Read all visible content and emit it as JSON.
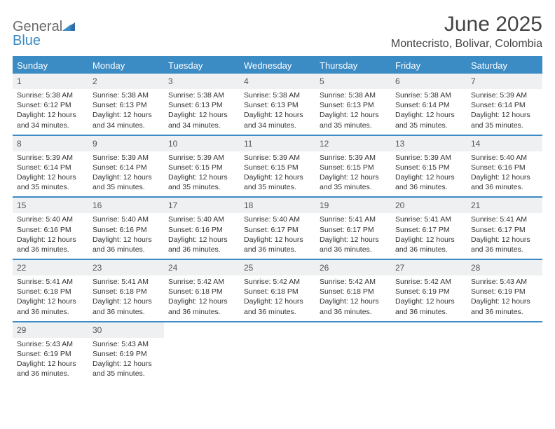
{
  "brand": {
    "part1": "General",
    "part2": "Blue"
  },
  "title": "June 2025",
  "subtitle": "Montecristo, Bolivar, Colombia",
  "colors": {
    "accent": "#3b8bc4",
    "header_text": "#ffffff",
    "daynum_bg": "#eef0f1",
    "body_text": "#333333",
    "title_text": "#444444"
  },
  "day_names": [
    "Sunday",
    "Monday",
    "Tuesday",
    "Wednesday",
    "Thursday",
    "Friday",
    "Saturday"
  ],
  "weeks": [
    [
      {
        "n": "1",
        "sr": "Sunrise: 5:38 AM",
        "ss": "Sunset: 6:12 PM",
        "d1": "Daylight: 12 hours",
        "d2": "and 34 minutes."
      },
      {
        "n": "2",
        "sr": "Sunrise: 5:38 AM",
        "ss": "Sunset: 6:13 PM",
        "d1": "Daylight: 12 hours",
        "d2": "and 34 minutes."
      },
      {
        "n": "3",
        "sr": "Sunrise: 5:38 AM",
        "ss": "Sunset: 6:13 PM",
        "d1": "Daylight: 12 hours",
        "d2": "and 34 minutes."
      },
      {
        "n": "4",
        "sr": "Sunrise: 5:38 AM",
        "ss": "Sunset: 6:13 PM",
        "d1": "Daylight: 12 hours",
        "d2": "and 34 minutes."
      },
      {
        "n": "5",
        "sr": "Sunrise: 5:38 AM",
        "ss": "Sunset: 6:13 PM",
        "d1": "Daylight: 12 hours",
        "d2": "and 35 minutes."
      },
      {
        "n": "6",
        "sr": "Sunrise: 5:38 AM",
        "ss": "Sunset: 6:14 PM",
        "d1": "Daylight: 12 hours",
        "d2": "and 35 minutes."
      },
      {
        "n": "7",
        "sr": "Sunrise: 5:39 AM",
        "ss": "Sunset: 6:14 PM",
        "d1": "Daylight: 12 hours",
        "d2": "and 35 minutes."
      }
    ],
    [
      {
        "n": "8",
        "sr": "Sunrise: 5:39 AM",
        "ss": "Sunset: 6:14 PM",
        "d1": "Daylight: 12 hours",
        "d2": "and 35 minutes."
      },
      {
        "n": "9",
        "sr": "Sunrise: 5:39 AM",
        "ss": "Sunset: 6:14 PM",
        "d1": "Daylight: 12 hours",
        "d2": "and 35 minutes."
      },
      {
        "n": "10",
        "sr": "Sunrise: 5:39 AM",
        "ss": "Sunset: 6:15 PM",
        "d1": "Daylight: 12 hours",
        "d2": "and 35 minutes."
      },
      {
        "n": "11",
        "sr": "Sunrise: 5:39 AM",
        "ss": "Sunset: 6:15 PM",
        "d1": "Daylight: 12 hours",
        "d2": "and 35 minutes."
      },
      {
        "n": "12",
        "sr": "Sunrise: 5:39 AM",
        "ss": "Sunset: 6:15 PM",
        "d1": "Daylight: 12 hours",
        "d2": "and 35 minutes."
      },
      {
        "n": "13",
        "sr": "Sunrise: 5:39 AM",
        "ss": "Sunset: 6:15 PM",
        "d1": "Daylight: 12 hours",
        "d2": "and 36 minutes."
      },
      {
        "n": "14",
        "sr": "Sunrise: 5:40 AM",
        "ss": "Sunset: 6:16 PM",
        "d1": "Daylight: 12 hours",
        "d2": "and 36 minutes."
      }
    ],
    [
      {
        "n": "15",
        "sr": "Sunrise: 5:40 AM",
        "ss": "Sunset: 6:16 PM",
        "d1": "Daylight: 12 hours",
        "d2": "and 36 minutes."
      },
      {
        "n": "16",
        "sr": "Sunrise: 5:40 AM",
        "ss": "Sunset: 6:16 PM",
        "d1": "Daylight: 12 hours",
        "d2": "and 36 minutes."
      },
      {
        "n": "17",
        "sr": "Sunrise: 5:40 AM",
        "ss": "Sunset: 6:16 PM",
        "d1": "Daylight: 12 hours",
        "d2": "and 36 minutes."
      },
      {
        "n": "18",
        "sr": "Sunrise: 5:40 AM",
        "ss": "Sunset: 6:17 PM",
        "d1": "Daylight: 12 hours",
        "d2": "and 36 minutes."
      },
      {
        "n": "19",
        "sr": "Sunrise: 5:41 AM",
        "ss": "Sunset: 6:17 PM",
        "d1": "Daylight: 12 hours",
        "d2": "and 36 minutes."
      },
      {
        "n": "20",
        "sr": "Sunrise: 5:41 AM",
        "ss": "Sunset: 6:17 PM",
        "d1": "Daylight: 12 hours",
        "d2": "and 36 minutes."
      },
      {
        "n": "21",
        "sr": "Sunrise: 5:41 AM",
        "ss": "Sunset: 6:17 PM",
        "d1": "Daylight: 12 hours",
        "d2": "and 36 minutes."
      }
    ],
    [
      {
        "n": "22",
        "sr": "Sunrise: 5:41 AM",
        "ss": "Sunset: 6:18 PM",
        "d1": "Daylight: 12 hours",
        "d2": "and 36 minutes."
      },
      {
        "n": "23",
        "sr": "Sunrise: 5:41 AM",
        "ss": "Sunset: 6:18 PM",
        "d1": "Daylight: 12 hours",
        "d2": "and 36 minutes."
      },
      {
        "n": "24",
        "sr": "Sunrise: 5:42 AM",
        "ss": "Sunset: 6:18 PM",
        "d1": "Daylight: 12 hours",
        "d2": "and 36 minutes."
      },
      {
        "n": "25",
        "sr": "Sunrise: 5:42 AM",
        "ss": "Sunset: 6:18 PM",
        "d1": "Daylight: 12 hours",
        "d2": "and 36 minutes."
      },
      {
        "n": "26",
        "sr": "Sunrise: 5:42 AM",
        "ss": "Sunset: 6:18 PM",
        "d1": "Daylight: 12 hours",
        "d2": "and 36 minutes."
      },
      {
        "n": "27",
        "sr": "Sunrise: 5:42 AM",
        "ss": "Sunset: 6:19 PM",
        "d1": "Daylight: 12 hours",
        "d2": "and 36 minutes."
      },
      {
        "n": "28",
        "sr": "Sunrise: 5:43 AM",
        "ss": "Sunset: 6:19 PM",
        "d1": "Daylight: 12 hours",
        "d2": "and 36 minutes."
      }
    ],
    [
      {
        "n": "29",
        "sr": "Sunrise: 5:43 AM",
        "ss": "Sunset: 6:19 PM",
        "d1": "Daylight: 12 hours",
        "d2": "and 36 minutes."
      },
      {
        "n": "30",
        "sr": "Sunrise: 5:43 AM",
        "ss": "Sunset: 6:19 PM",
        "d1": "Daylight: 12 hours",
        "d2": "and 35 minutes."
      },
      null,
      null,
      null,
      null,
      null
    ]
  ]
}
